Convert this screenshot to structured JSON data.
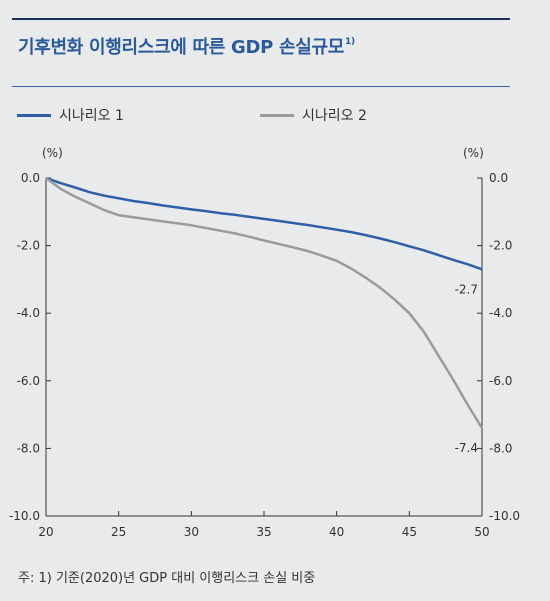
{
  "title": "기후변화 이행리스크에 따른 GDP 손실규모",
  "title_sup": "1)",
  "footnote": "주: 1) 기준(2020)년 GDP 대비 이행리스크 손실 비중",
  "colors": {
    "series1": "#2e5fa8",
    "series2": "#9b9b9b",
    "title": "#2b5a9a",
    "background": "#e9eaec"
  },
  "chart_data": {
    "type": "line",
    "y_unit_left": "(%)",
    "y_unit_right": "(%)",
    "xlim": [
      20,
      50
    ],
    "ylim": [
      -10.0,
      0.0
    ],
    "x_ticks": [
      "20",
      "25",
      "30",
      "35",
      "40",
      "45",
      "50"
    ],
    "y_ticks": [
      "0.0",
      "-2.0",
      "-4.0",
      "-6.0",
      "-8.0",
      "-10.0"
    ],
    "grid": false,
    "legend_position": "top-left",
    "series": [
      {
        "name": "시나리오 1",
        "color": "#2e5fa8",
        "x": [
          20,
          21,
          22,
          23,
          24,
          25,
          26,
          27,
          28,
          29,
          30,
          31,
          32,
          33,
          34,
          35,
          36,
          37,
          38,
          39,
          40,
          41,
          42,
          43,
          44,
          45,
          46,
          47,
          48,
          49,
          50
        ],
        "values": [
          0.0,
          -0.15,
          -0.28,
          -0.42,
          -0.52,
          -0.6,
          -0.68,
          -0.74,
          -0.81,
          -0.87,
          -0.93,
          -0.98,
          -1.04,
          -1.09,
          -1.15,
          -1.21,
          -1.27,
          -1.33,
          -1.39,
          -1.46,
          -1.53,
          -1.6,
          -1.69,
          -1.79,
          -1.9,
          -2.02,
          -2.14,
          -2.28,
          -2.42,
          -2.55,
          -2.7
        ],
        "end_label": "-2.7"
      },
      {
        "name": "시나리오 2",
        "color": "#9b9b9b",
        "x": [
          20,
          21,
          22,
          23,
          24,
          25,
          26,
          27,
          28,
          29,
          30,
          31,
          32,
          33,
          34,
          35,
          36,
          37,
          38,
          39,
          40,
          41,
          42,
          43,
          44,
          45,
          46,
          47,
          48,
          49,
          50
        ],
        "values": [
          0.0,
          -0.32,
          -0.55,
          -0.75,
          -0.95,
          -1.1,
          -1.16,
          -1.22,
          -1.28,
          -1.34,
          -1.4,
          -1.48,
          -1.56,
          -1.64,
          -1.74,
          -1.85,
          -1.95,
          -2.05,
          -2.16,
          -2.3,
          -2.45,
          -2.68,
          -2.95,
          -3.25,
          -3.6,
          -4.0,
          -4.55,
          -5.25,
          -5.95,
          -6.7,
          -7.4
        ],
        "end_label": "-7.4"
      }
    ]
  }
}
